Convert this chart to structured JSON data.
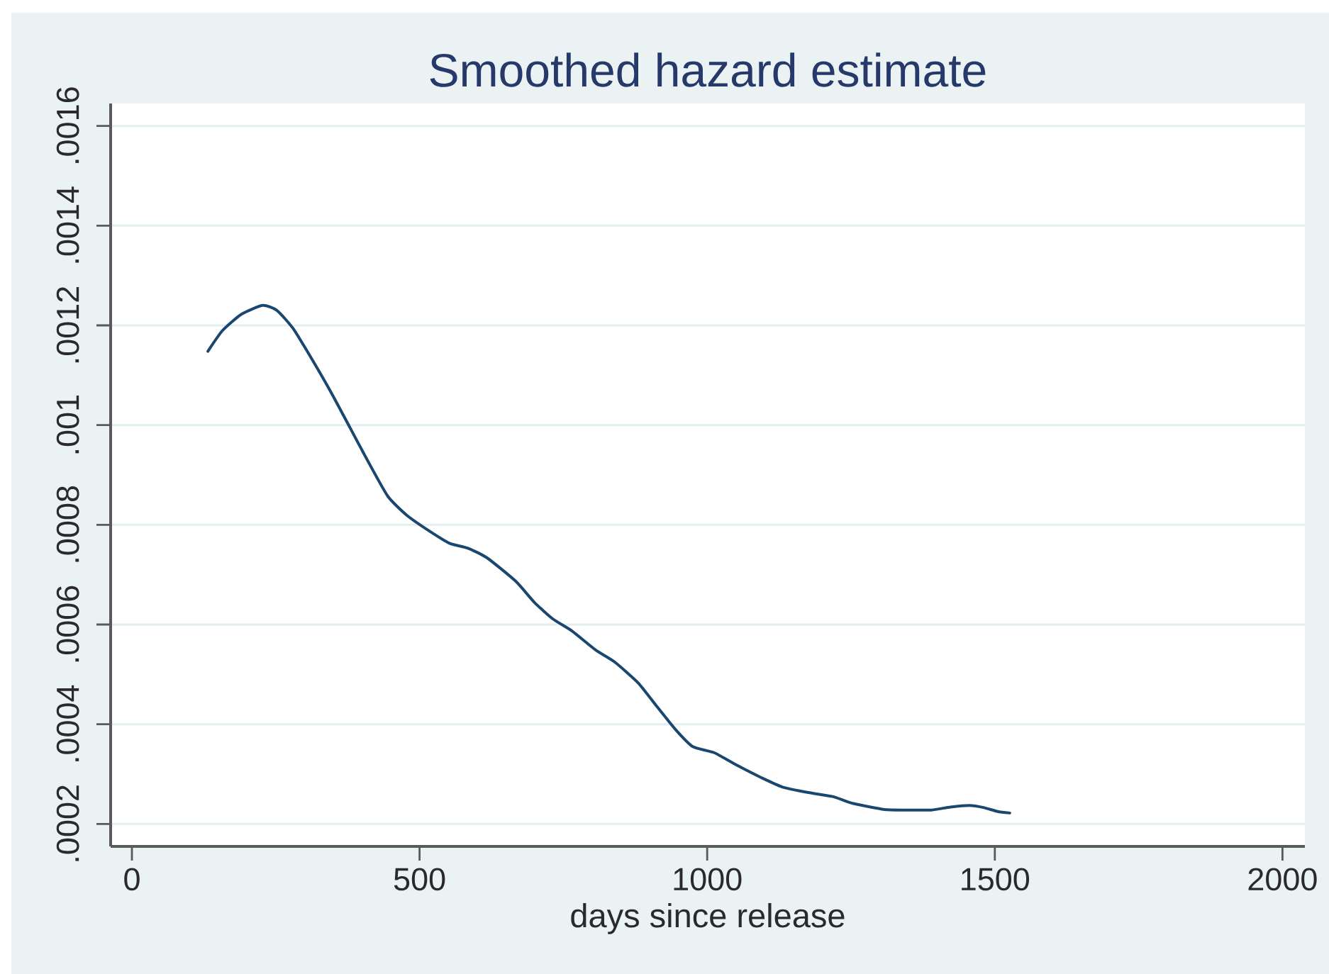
{
  "chart_data": {
    "type": "line",
    "title": "Smoothed hazard estimate",
    "xlabel": "days since release",
    "x": [
      132,
      157,
      190,
      227,
      252,
      280,
      313,
      346,
      379,
      412,
      445,
      478,
      519,
      552,
      584,
      617,
      667,
      700,
      732,
      765,
      806,
      839,
      880,
      913,
      946,
      975,
      1012,
      1053,
      1094,
      1131,
      1176,
      1218,
      1254,
      1308,
      1349,
      1390,
      1423,
      1456,
      1480,
      1505,
      1526
    ],
    "series": [
      {
        "color": "#1a476f",
        "values": [
          0.001148,
          0.001189,
          0.001222,
          0.00124,
          0.00123,
          0.001194,
          0.001132,
          0.001066,
          0.000995,
          0.000924,
          0.000857,
          0.000819,
          0.000786,
          0.000763,
          0.000753,
          0.000734,
          0.000687,
          0.000644,
          0.000611,
          0.000587,
          0.000549,
          0.000525,
          0.000483,
          0.000435,
          0.000388,
          0.000355,
          0.000343,
          0.000317,
          0.000293,
          0.000274,
          0.000263,
          0.000255,
          0.000241,
          0.000229,
          0.000228,
          0.000228,
          0.000234,
          0.000237,
          0.000233,
          0.000225,
          0.000222
        ]
      }
    ],
    "xlim": [
      -37,
      2039
    ],
    "ylim": [
      0.000155,
      0.001645
    ],
    "xticks": [
      0,
      500,
      1000,
      1500,
      2000
    ],
    "yticks": [
      {
        "value": 0.0002,
        "label": ".0002"
      },
      {
        "value": 0.0004,
        "label": ".0004"
      },
      {
        "value": 0.0006,
        "label": ".0006"
      },
      {
        "value": 0.0008,
        "label": ".0008"
      },
      {
        "value": 0.001,
        "label": ".001"
      },
      {
        "value": 0.0012,
        "label": ".0012"
      },
      {
        "value": 0.0014,
        "label": ".0014"
      },
      {
        "value": 0.0016,
        "label": ".0016"
      }
    ],
    "grid": "y",
    "line_style": "solid"
  }
}
